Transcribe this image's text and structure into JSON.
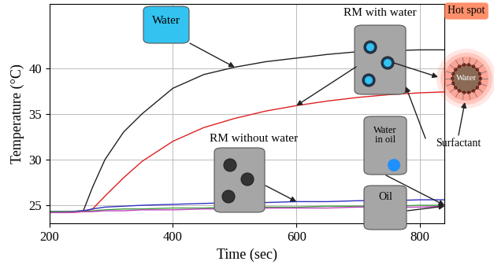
{
  "chart_data": {
    "type": "line",
    "x_label": "Time (sec)",
    "y_label": "Temperature (°C)",
    "x": [
      200,
      230,
      255,
      270,
      290,
      320,
      350,
      400,
      450,
      500,
      550,
      600,
      650,
      700,
      750,
      800,
      840
    ],
    "series": [
      {
        "name": "Water",
        "color": "#222222",
        "values": [
          24.3,
          24.3,
          24.4,
          27.0,
          30.0,
          33.0,
          35.0,
          37.8,
          39.3,
          40.1,
          40.7,
          41.1,
          41.5,
          41.8,
          41.9,
          42.0,
          42.0
        ]
      },
      {
        "name": "RM with water",
        "color": "#e02020",
        "values": [
          24.2,
          24.2,
          24.3,
          24.6,
          26.0,
          28.0,
          29.8,
          32.0,
          33.5,
          34.5,
          35.3,
          35.9,
          36.4,
          36.8,
          37.1,
          37.3,
          37.4
        ]
      },
      {
        "name": "RM without water",
        "color": "#3030c0",
        "values": [
          24.3,
          24.3,
          24.4,
          24.6,
          24.8,
          24.9,
          25.0,
          25.1,
          25.2,
          25.3,
          25.3,
          25.4,
          25.4,
          25.5,
          25.5,
          25.6,
          25.6
        ]
      },
      {
        "name": "Water in oil",
        "color": "#40a040",
        "values": [
          24.3,
          24.3,
          24.3,
          24.4,
          24.5,
          24.6,
          24.6,
          24.7,
          24.7,
          24.8,
          24.8,
          24.8,
          24.9,
          24.9,
          24.9,
          25.0,
          25.0
        ]
      },
      {
        "name": "Oil",
        "color": "#c040c0",
        "values": [
          24.2,
          24.2,
          24.3,
          24.3,
          24.4,
          24.4,
          24.5,
          24.5,
          24.6,
          24.6,
          24.7,
          24.7,
          24.7,
          24.8,
          24.8,
          24.8,
          24.9
        ]
      }
    ],
    "xlim": [
      200,
      840
    ],
    "ylim": [
      23,
      47
    ],
    "xticks": [
      200,
      400,
      600,
      800
    ],
    "yticks": [
      25,
      30,
      35,
      40
    ],
    "grid": true,
    "annotations": [
      "Hot spot",
      "Water",
      "Surfactant"
    ]
  }
}
